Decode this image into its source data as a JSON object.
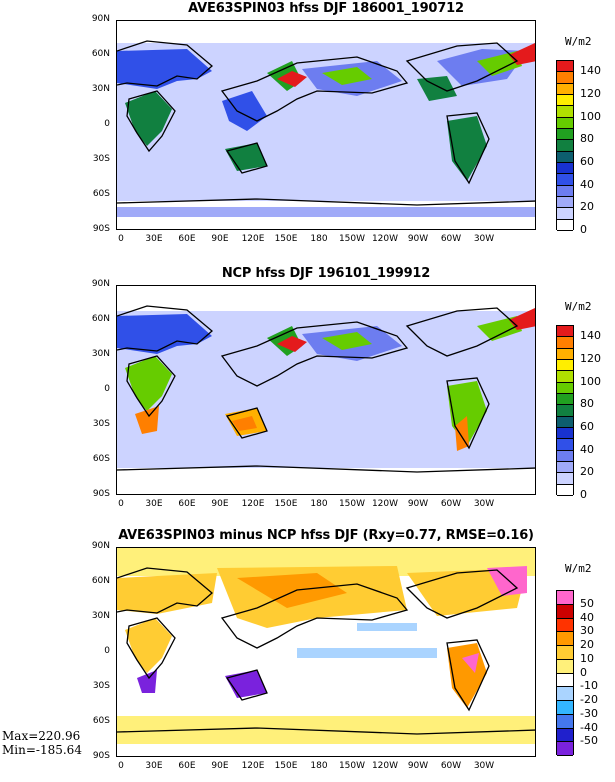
{
  "panels": [
    {
      "title": "AVE63SPIN03 hfss DJF 186001_190712",
      "unit": "W/m2",
      "colorbar": {
        "labels": [
          "140",
          "120",
          "100",
          "80",
          "60",
          "40",
          "20",
          "0"
        ],
        "colors": [
          "#e41a1c",
          "#ff7f00",
          "#ffb000",
          "#ffee00",
          "#b0e000",
          "#66cc00",
          "#21a020",
          "#118040",
          "#0d5e6e",
          "#1832d0",
          "#3050e8",
          "#6d7df0",
          "#a0aaf8",
          "#ccd3ff",
          "#ffffff"
        ]
      }
    },
    {
      "title": "NCP hfss DJF 196101_199912",
      "unit": "W/m2",
      "colorbar": {
        "labels": [
          "140",
          "120",
          "100",
          "80",
          "60",
          "40",
          "20",
          "0"
        ],
        "colors": [
          "#e41a1c",
          "#ff7f00",
          "#ffb000",
          "#ffee00",
          "#b0e000",
          "#66cc00",
          "#21a020",
          "#118040",
          "#0d5e6e",
          "#1832d0",
          "#3050e8",
          "#6d7df0",
          "#a0aaf8",
          "#ccd3ff",
          "#ffffff"
        ]
      }
    },
    {
      "title": "AVE63SPIN03 minus NCP hfss DJF (Rxy=0.77, RMSE=0.16)",
      "unit": "W/m2",
      "colorbar": {
        "labels": [
          "50",
          "40",
          "30",
          "20",
          "10",
          "0",
          "-10",
          "-20",
          "-30",
          "-40",
          "-50"
        ],
        "colors": [
          "#ff66cc",
          "#cc0000",
          "#ff3300",
          "#ff9900",
          "#ffcc33",
          "#fff07a",
          "#ffffff",
          "#aad4ff",
          "#33b5ff",
          "#4477ee",
          "#2020cc",
          "#7a22dd"
        ]
      },
      "max_label": "Max=220.96",
      "min_label": "Min=-185.64"
    }
  ],
  "lat_labels": [
    "90N",
    "60N",
    "30N",
    "0",
    "30S",
    "60S",
    "90S"
  ],
  "lon_labels": [
    "0",
    "30E",
    "60E",
    "90E",
    "120E",
    "150E",
    "180",
    "150W",
    "120W",
    "90W",
    "60W",
    "30W"
  ]
}
